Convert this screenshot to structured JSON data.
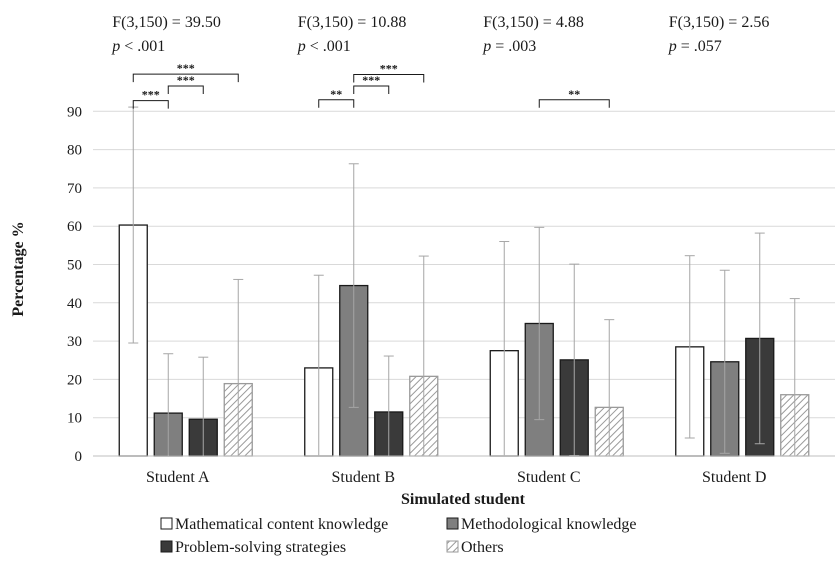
{
  "chart_data": {
    "type": "bar",
    "xlabel": "Simulated student",
    "ylabel": "Percentage %",
    "ylim": [
      0,
      90
    ],
    "yticks": [
      "0",
      "10",
      "20",
      "30",
      "40",
      "50",
      "60",
      "70",
      "80",
      "90"
    ],
    "grid": true,
    "legend_position": "bottom",
    "categories": [
      "Student A",
      "Student B",
      "Student C",
      "Student D"
    ],
    "series": [
      {
        "name": "Mathematical content knowledge",
        "values": [
          60.3,
          23.0,
          27.5,
          28.5
        ],
        "errors": [
          30.8,
          24.2,
          28.5,
          23.8
        ],
        "fill": "#ffffff",
        "pattern": "solid"
      },
      {
        "name": "Methodological knowledge",
        "values": [
          11.2,
          44.5,
          34.6,
          24.6
        ],
        "errors": [
          15.5,
          31.8,
          25.1,
          23.9
        ],
        "fill": "#7f7f7f",
        "pattern": "solid"
      },
      {
        "name": "Problem-solving strategies",
        "values": [
          9.6,
          11.5,
          25.1,
          30.7
        ],
        "errors": [
          16.2,
          14.6,
          25.0,
          27.5
        ],
        "fill": "#3a3a3a",
        "pattern": "solid"
      },
      {
        "name": "Others",
        "values": [
          18.9,
          20.8,
          12.7,
          16.0
        ],
        "errors": [
          27.2,
          31.4,
          22.9,
          25.1
        ],
        "fill": "#ffffff",
        "pattern": "hatch"
      }
    ],
    "stats": [
      {
        "f": "F(3,150) = 39.50",
        "p_label": "p",
        "p_value": " < .001"
      },
      {
        "f": "F(3,150) = 10.88",
        "p_label": "p",
        "p_value": " < .001"
      },
      {
        "f": "F(3,150) = 4.88",
        "p_label": "p",
        "p_value": " = .003"
      },
      {
        "f": "F(3,150) = 2.56",
        "p_label": "p",
        "p_value": " = .057"
      }
    ],
    "significance_brackets": [
      {
        "category": 0,
        "from": 0,
        "to": 1,
        "label": "***",
        "y": 92.8
      },
      {
        "category": 0,
        "from": 1,
        "to": 2,
        "label": "***",
        "y": 96.6
      },
      {
        "category": 0,
        "from": 0,
        "to": 3,
        "label": "***",
        "y": 99.7
      },
      {
        "category": 1,
        "from": 0,
        "to": 1,
        "label": "**",
        "y": 93.0
      },
      {
        "category": 1,
        "from": 1,
        "to": 2,
        "label": "***",
        "y": 96.6
      },
      {
        "category": 1,
        "from": 1,
        "to": 3,
        "label": "***",
        "y": 99.6
      },
      {
        "category": 2,
        "from": 1,
        "to": 3,
        "label": "**",
        "y": 93.0
      }
    ]
  }
}
